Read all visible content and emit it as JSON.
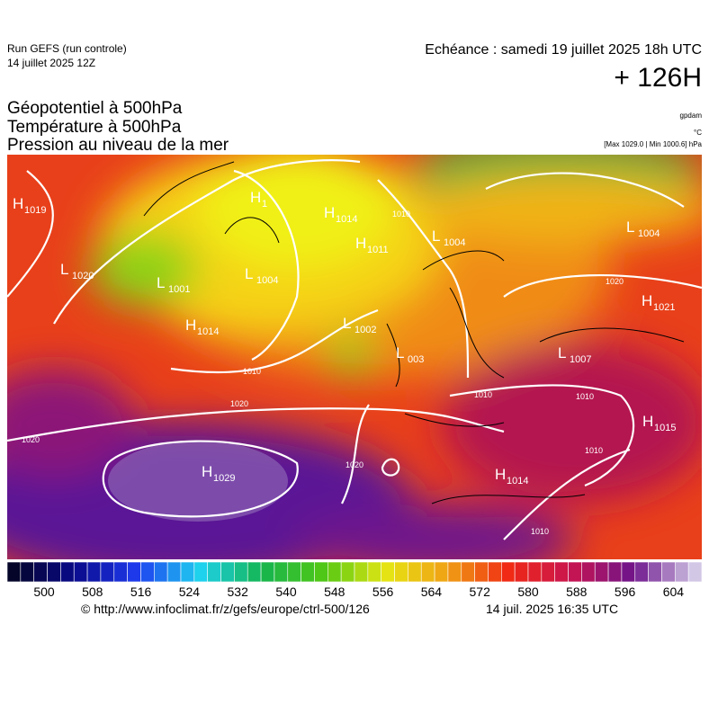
{
  "header": {
    "run": "Run GEFS (run controle)",
    "run_date": "14 juillet 2025 12Z",
    "valid": "Echéance : samedi 19 juillet 2025 18h UTC",
    "lead": "+ 126H"
  },
  "fields": {
    "line1": "Géopotentiel à 500hPa",
    "line2": "Température à 500hPa",
    "line3": "Pression au niveau de la mer"
  },
  "units": {
    "geopotential": "gpdam",
    "temperature": "°C",
    "pressure": "[Max 1029.0 | Min 1000.6] hPa"
  },
  "colorbar": {
    "colors": [
      "#05052a",
      "#0a0a8c",
      "#1e3cf0",
      "#1ed2f0",
      "#14b450",
      "#50c814",
      "#e6e614",
      "#f0a014",
      "#f02814",
      "#c81450",
      "#6e148c",
      "#d2c8e6"
    ],
    "labels": [
      "500",
      "508",
      "516",
      "524",
      "532",
      "540",
      "548",
      "556",
      "564",
      "572",
      "580",
      "588",
      "596",
      "604"
    ]
  },
  "centers": [
    {
      "letter": "H",
      "value": "1019"
    },
    {
      "letter": "L",
      "value": "1020"
    },
    {
      "letter": "L",
      "value": "1001"
    },
    {
      "letter": "H",
      "value": "1014"
    },
    {
      "letter": "H",
      "value": "1"
    },
    {
      "letter": "L",
      "value": "1004"
    },
    {
      "letter": "H",
      "value": "1014"
    },
    {
      "letter": "H",
      "value": "1011"
    },
    {
      "letter": "L",
      "value": "1004"
    },
    {
      "letter": "L",
      "value": "1002"
    },
    {
      "letter": "L",
      "value": "003"
    },
    {
      "letter": "H",
      "value": "1029"
    },
    {
      "letter": "H",
      "value": "1014"
    },
    {
      "letter": "L",
      "value": "1007"
    },
    {
      "letter": "H",
      "value": "1015"
    },
    {
      "letter": "H",
      "value": "1021"
    },
    {
      "letter": "L",
      "value": "1004"
    }
  ],
  "isobar_labels": [
    "1020",
    "1020",
    "1020",
    "1010",
    "1010",
    "1010",
    "1010",
    "1010",
    "1010",
    "1020"
  ],
  "footer": {
    "url": "© http://www.infoclimat.fr/z/gefs/europe/ctrl-500/126",
    "generated": "14 juil. 2025 16:35 UTC"
  }
}
